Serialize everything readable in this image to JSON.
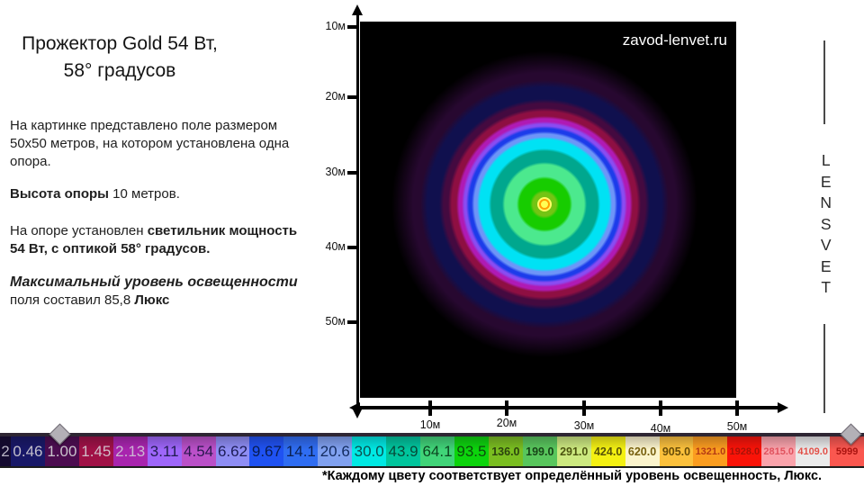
{
  "title": {
    "line1": "Прожектор Gold 54 Вт,",
    "line2": "58° градусов"
  },
  "description": {
    "para1": "На картинке представлено  поле  размером\n50х50 метров, на котором установлена  одна\nопора.",
    "para2_bold": "Высота опоры",
    "para2_rest": " 10 метров.",
    "para3_start": "На опоре установлен  ",
    "para3_bold": "светильник мощность\n54 Вт, с оптикой 58° градусов.",
    "para4_line1": "Максимальный уровень освещенности",
    "para4_line2_start": "поля   составил  85,8 ",
    "para4_line2_bold": "Люкс"
  },
  "plot": {
    "watermark": "zavod-lenvet.ru",
    "y_axis_labels": [
      "10м",
      "20м",
      "30м",
      "40м",
      "50м"
    ],
    "x_axis_labels": [
      "10м",
      "20м",
      "30м",
      "40м",
      "50м"
    ]
  },
  "brand": {
    "letters": [
      "L",
      "E",
      "N",
      "S",
      "V",
      "E",
      "T"
    ]
  },
  "colorbar": {
    "segments": [
      {
        "label": "2",
        "bg": "#140a30",
        "fg": "#b8b4c4",
        "size": "lg",
        "first": true
      },
      {
        "label": "0.46",
        "bg": "#181868",
        "fg": "#c4c0cc",
        "size": "lg"
      },
      {
        "label": "1.00",
        "bg": "#4c0c50",
        "fg": "#c9c2cc",
        "size": "lg"
      },
      {
        "label": "1.45",
        "bg": "#a01146",
        "fg": "#d0bcc8",
        "size": "lg"
      },
      {
        "label": "2.13",
        "bg": "#a824ae",
        "fg": "#cbb6d2",
        "size": "lg"
      },
      {
        "label": "3.11",
        "bg": "#9e66fa",
        "fg": "#201c50",
        "size": "lg"
      },
      {
        "label": "4.54",
        "bg": "#ba50c8",
        "fg": "#2a1850",
        "size": "lg"
      },
      {
        "label": "6.62",
        "bg": "#8e8df4",
        "fg": "#1c1c55",
        "size": "lg"
      },
      {
        "label": "9.67",
        "bg": "#1f52f2",
        "fg": "#081c50",
        "size": "lg"
      },
      {
        "label": "14.1",
        "bg": "#2f6df2",
        "fg": "#0a2050",
        "size": "lg"
      },
      {
        "label": "20.6",
        "bg": "#80a1f0",
        "fg": "#142c60",
        "size": "lg"
      },
      {
        "label": "30.0",
        "bg": "#00e9e4",
        "fg": "#0c5050",
        "size": "lg"
      },
      {
        "label": "43.9",
        "bg": "#00c59d",
        "fg": "#084838",
        "size": "lg"
      },
      {
        "label": "64.1",
        "bg": "#40d478",
        "fg": "#0c4420",
        "size": "lg"
      },
      {
        "label": "93.5",
        "bg": "#0cd40c",
        "fg": "#0c4c0c",
        "size": "lg"
      },
      {
        "label": "136.0",
        "bg": "#7abe20",
        "fg": "#2c430e",
        "size": "md"
      },
      {
        "label": "199.0",
        "bg": "#58c65c",
        "fg": "#174418",
        "size": "md"
      },
      {
        "label": "291.0",
        "bg": "#cce97f",
        "fg": "#4c5410",
        "size": "md"
      },
      {
        "label": "424.0",
        "bg": "#f4f112",
        "fg": "#585408",
        "size": "md"
      },
      {
        "label": "620.0",
        "bg": "#fbf4cc",
        "fg": "#786010",
        "size": "md"
      },
      {
        "label": "905.0",
        "bg": "#fcc13c",
        "fg": "#684c08",
        "size": "md"
      },
      {
        "label": "1321.0",
        "bg": "#fb9d1f",
        "fg": "#b43a14",
        "size": "sm"
      },
      {
        "label": "1928.0",
        "bg": "#fa1308",
        "fg": "#a81208",
        "size": "sm"
      },
      {
        "label": "2815.0",
        "bg": "#faa3ab",
        "fg": "#e0525e",
        "size": "sm"
      },
      {
        "label": "4109.0",
        "bg": "#eaeaea",
        "fg": "#e25048",
        "size": "sm"
      },
      {
        "label": "5999",
        "bg": "#fa574f",
        "fg": "#aa1410",
        "size": "sm"
      }
    ]
  },
  "caption": "*Каждому цвету  соответствует  определённый уровень освещенность, Люкс.",
  "chart_data": {
    "type": "heatmap",
    "title": "Прожектор Gold 54 Вт, 58° градусов",
    "subtitle": "Поле 50х50 метров, одна опора, высота опоры 10 м, светильник 54 Вт с оптикой 58°",
    "x_tick_labels": [
      "10м",
      "20м",
      "30м",
      "40м",
      "50м"
    ],
    "y_tick_labels": [
      "10м",
      "20м",
      "30м",
      "40м",
      "50м"
    ],
    "max_illuminance_lux": 85.8,
    "hotspot_center_axis_position": {
      "x": "25м",
      "y": "34м"
    },
    "legend_position": "bottom",
    "scale_levels_lux": [
      "2",
      "0.46",
      "1.00",
      "1.45",
      "2.13",
      "3.11",
      "4.54",
      "6.62",
      "9.67",
      "14.1",
      "20.6",
      "30.0",
      "43.9",
      "64.1",
      "93.5",
      "136.0",
      "199.0",
      "291.0",
      "424.0",
      "620.0",
      "905.0",
      "1321.0",
      "1928.0",
      "2815.0",
      "4109.0",
      "5999"
    ],
    "rings_inner_to_outer": [
      {
        "color": "#74c414",
        "outer_radius_px": 16,
        "outer_radius_m": 1.9
      },
      {
        "color": "#17cc00",
        "outer_radius_px": 31,
        "outer_radius_m": 3.7
      },
      {
        "color": "#4ce98e",
        "outer_radius_px": 47,
        "outer_radius_m": 5.6
      },
      {
        "color": "#00a78e",
        "outer_radius_px": 62,
        "outer_radius_m": 7.4
      },
      {
        "color": "#00e2f4",
        "outer_radius_px": 75,
        "outer_radius_m": 8.9
      },
      {
        "color": "#6e95f8",
        "outer_radius_px": 81,
        "outer_radius_m": 9.6
      },
      {
        "color": "#1c3cea",
        "outer_radius_px": 87,
        "outer_radius_m": 10.4
      },
      {
        "color": "#8a4cf2",
        "outer_radius_px": 92,
        "outer_radius_m": 11.0
      },
      {
        "color": "#b01ab4",
        "outer_radius_px": 98,
        "outer_radius_m": 11.7
      },
      {
        "color": "#8e0f42",
        "outer_radius_px": 107,
        "outer_radius_m": 12.7
      },
      {
        "color": "#440a40",
        "outer_radius_px": 117,
        "outer_radius_m": 13.9
      },
      {
        "color": "#10104e",
        "outer_radius_px": 138,
        "outer_radius_m": 16.4
      },
      {
        "color": "#270830",
        "outer_radius_px": 156,
        "outer_radius_m": 18.6
      }
    ]
  }
}
